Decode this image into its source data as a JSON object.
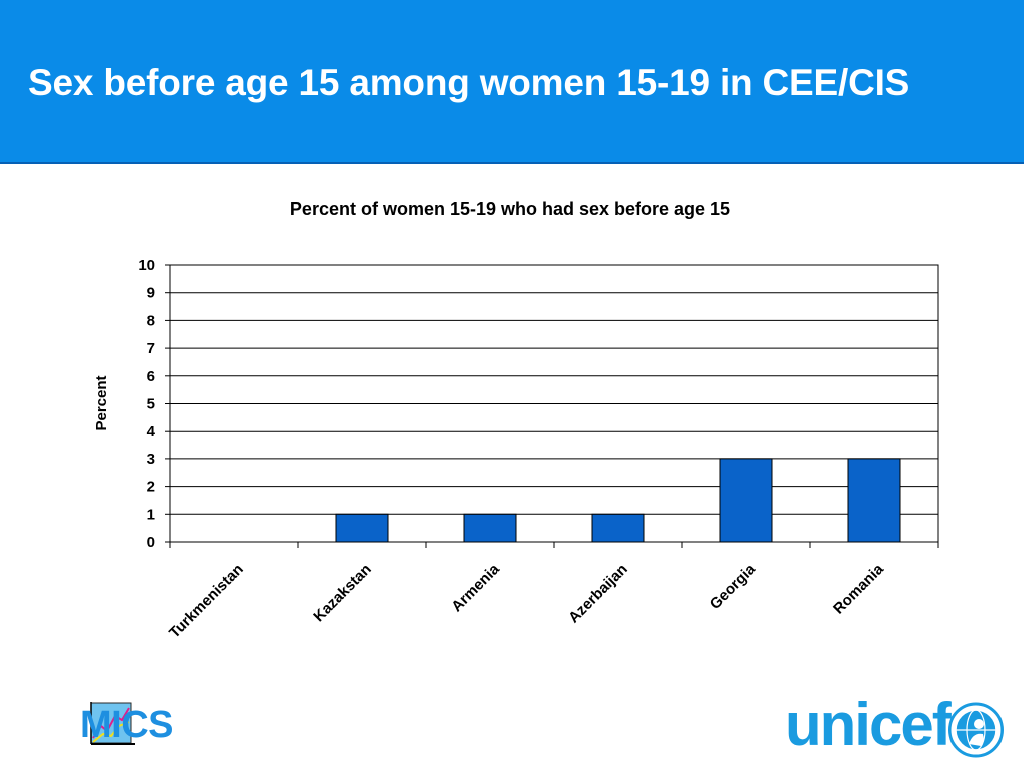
{
  "slide": {
    "title": "Sex before age 15 among women 15-19 in CEE/CIS"
  },
  "logos": {
    "mics": "MICS",
    "unicef": "unicef"
  },
  "colors": {
    "header_bg": "#0a8be8",
    "bar_fill": "#0a63c9",
    "logo_blue": "#1a9be0"
  },
  "chart_data": {
    "type": "bar",
    "title": "Percent of women 15-19 who had sex before age 15",
    "xlabel": "",
    "ylabel": "Percent",
    "categories": [
      "Turkmenistan",
      "Kazakstan",
      "Armenia",
      "Azerbaijan",
      "Georgia",
      "Romania"
    ],
    "values": [
      0,
      1,
      1,
      1,
      3,
      3
    ],
    "ylim": [
      0,
      10
    ],
    "yticks": [
      "0",
      "1",
      "2",
      "3",
      "4",
      "5",
      "6",
      "7",
      "8",
      "9",
      "10"
    ],
    "grid": true,
    "legend": "none"
  }
}
